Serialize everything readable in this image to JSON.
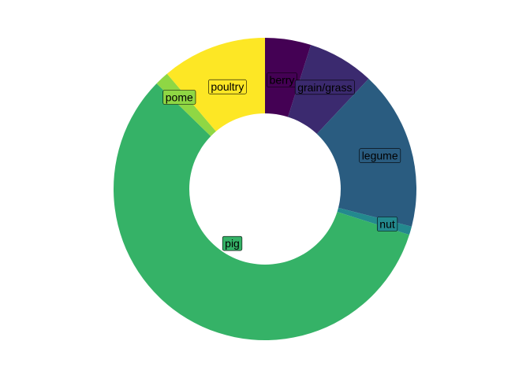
{
  "chart_data": {
    "type": "pie",
    "subtype": "donut",
    "title": "",
    "categories": [
      "berry",
      "grain/grass",
      "legume",
      "nut",
      "pig",
      "pome",
      "poultry"
    ],
    "values": [
      4.9,
      7.1,
      17.0,
      0.9,
      57.4,
      1.5,
      11.2
    ],
    "colors": [
      "#440154",
      "#3b2a6f",
      "#2a5c80",
      "#23898e",
      "#35b267",
      "#8fd744",
      "#fde725"
    ],
    "legend": "none",
    "labels_on_slices": true,
    "start_angle_deg": 0,
    "direction": "clockwise"
  }
}
